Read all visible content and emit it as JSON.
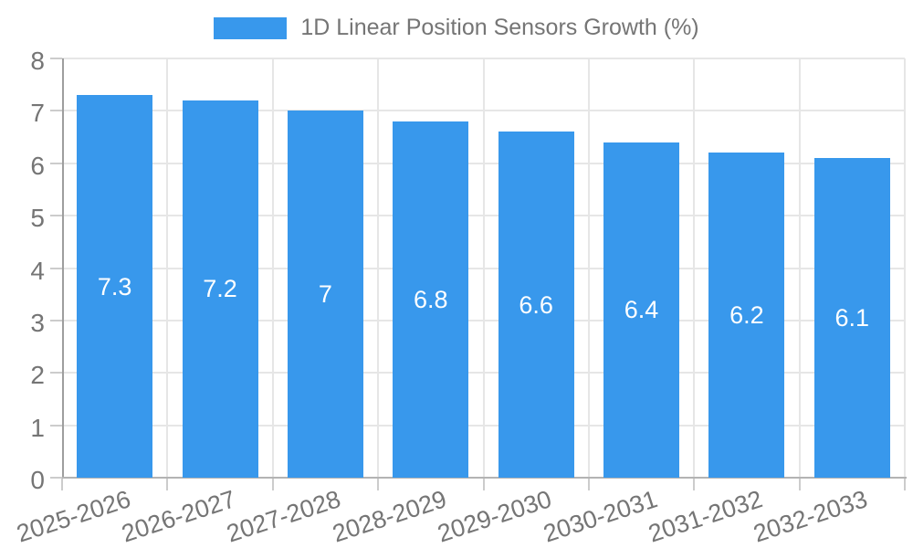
{
  "legend": {
    "label": "1D Linear Position Sensors Growth (%)",
    "swatch_color": "#3898ec"
  },
  "chart_data": {
    "type": "bar",
    "title": "1D Linear Position Sensors Growth (%)",
    "categories": [
      "2025-2026",
      "2026-2027",
      "2027-2028",
      "2028-2029",
      "2029-2030",
      "2030-2031",
      "2031-2032",
      "2032-2033"
    ],
    "values": [
      7.3,
      7.2,
      7,
      6.8,
      6.6,
      6.4,
      6.2,
      6.1
    ],
    "value_labels": [
      "7.3",
      "7.2",
      "7",
      "6.8",
      "6.6",
      "6.4",
      "6.2",
      "6.1"
    ],
    "xlabel": "",
    "ylabel": "",
    "ylim": [
      0,
      8
    ],
    "yticks": [
      0,
      1,
      2,
      3,
      4,
      5,
      6,
      7,
      8
    ],
    "ytick_labels": [
      "0",
      "1",
      "2",
      "3",
      "4",
      "5",
      "6",
      "7",
      "8"
    ],
    "grid": true,
    "legend_position": "top-center",
    "colors": {
      "bar": "#3898ec",
      "axis_text": "#757575",
      "gridline": "#e6e6e6",
      "axis_line": "#9e9e9e",
      "value_label_text": "#ffffff",
      "background": "#ffffff"
    }
  }
}
